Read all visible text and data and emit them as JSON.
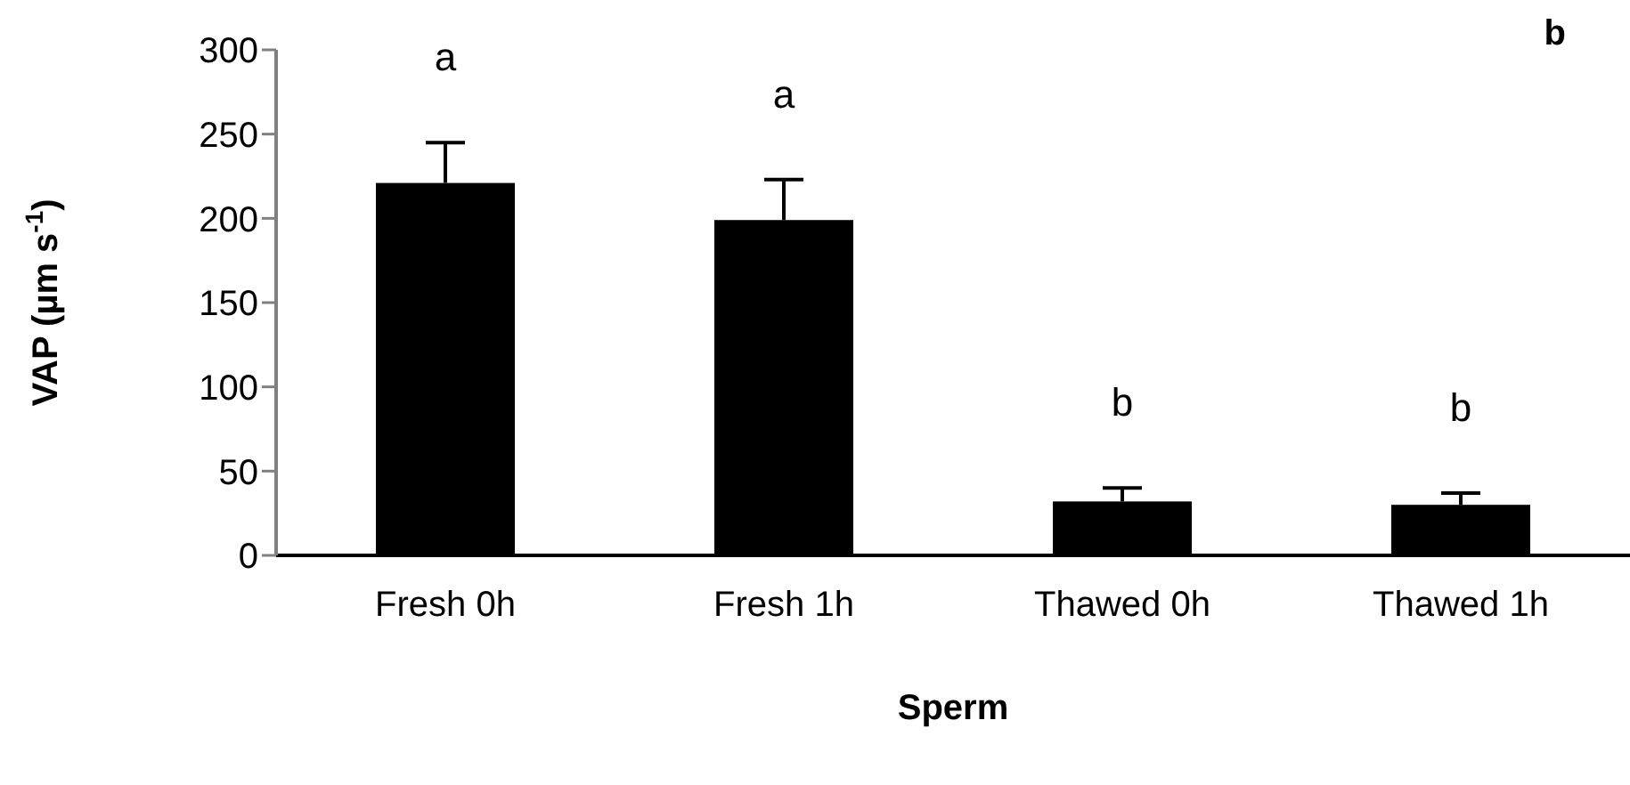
{
  "chart_data": {
    "type": "bar",
    "xlabel": "Sperm",
    "ylabel": "VAP (µm s$^{-1}$)",
    "categories": [
      "Fresh 0h",
      "Fresh 1h",
      "Thawed 0h",
      "Thawed 1h"
    ],
    "values": [
      221,
      199,
      32,
      30
    ],
    "color": "#000000",
    "errors": [
      24,
      24,
      8,
      7
    ],
    "ylim": [
      0,
      300
    ],
    "yticks": [
      0,
      50,
      100,
      150,
      200,
      250,
      300
    ],
    "grid": false,
    "legend": false,
    "annotations": [
      "a",
      "a",
      "b",
      "b",
      "b"
    ]
  }
}
